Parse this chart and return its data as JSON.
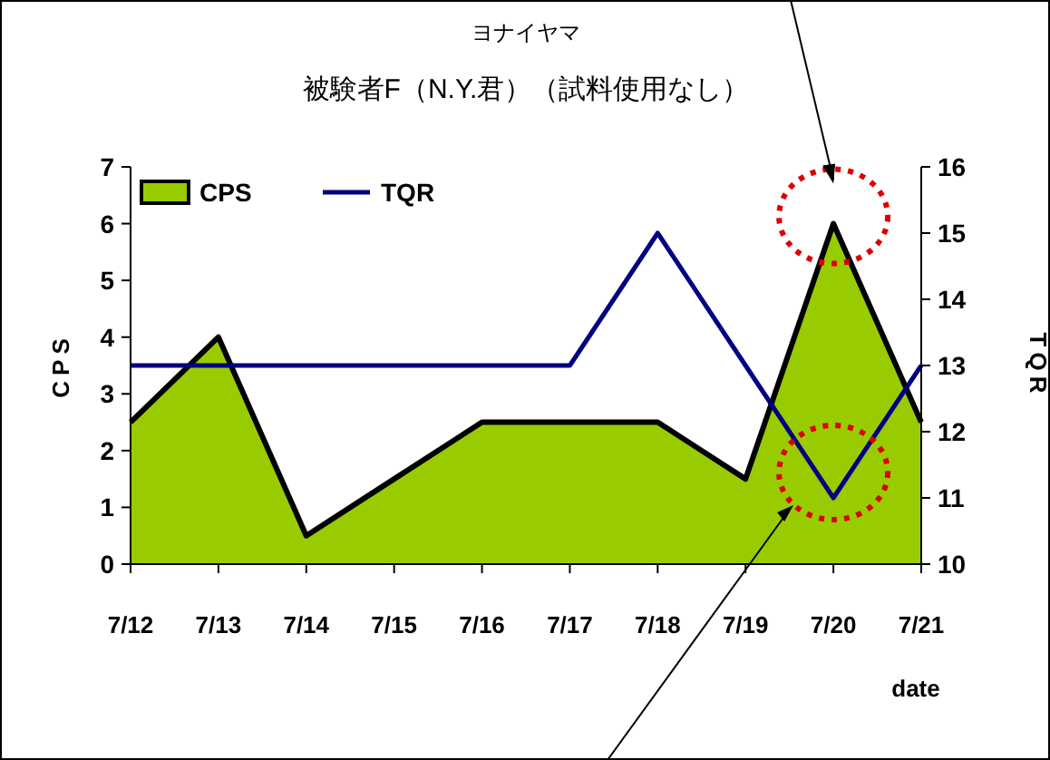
{
  "chart_data": {
    "type": "area",
    "title": "被験者F（N.Y.君）（試料使用なし）",
    "annotations": [
      "ヨナイヤマ"
    ],
    "xlabel": "date",
    "ylabel": "CPS",
    "y2label": "TQR",
    "categories": [
      "7/12",
      "7/13",
      "7/14",
      "7/15",
      "7/16",
      "7/17",
      "7/18",
      "7/19",
      "7/20",
      "7/21"
    ],
    "series": [
      {
        "name": "CPS",
        "type": "area",
        "color": "#99cc00",
        "values": [
          2.5,
          4,
          0.5,
          1.5,
          2.5,
          2.5,
          2.5,
          1.5,
          6,
          2.5
        ]
      },
      {
        "name": "TQR",
        "type": "line",
        "color": "#000080",
        "axis": "y2",
        "values": [
          13,
          13,
          13,
          13,
          13,
          13,
          15,
          13,
          11,
          13
        ]
      }
    ],
    "ylim": [
      0,
      7
    ],
    "yticks": [
      0,
      1,
      2,
      3,
      4,
      5,
      6,
      7
    ],
    "y2lim": [
      10,
      16
    ],
    "y2ticks": [
      10,
      11,
      12,
      13,
      14,
      15,
      16
    ],
    "legend": "top left",
    "grid": false
  }
}
